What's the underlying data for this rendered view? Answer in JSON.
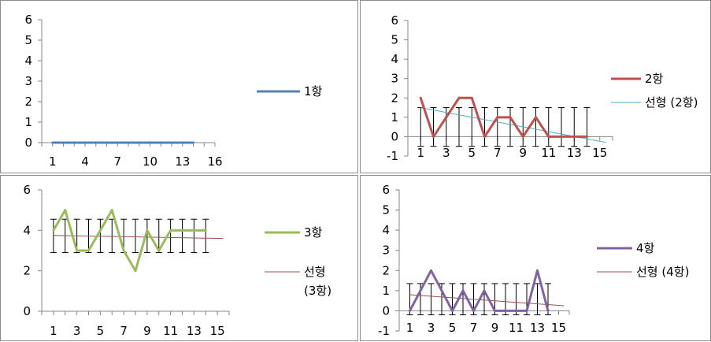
{
  "chart_data": [
    {
      "type": "line",
      "x": [
        1,
        2,
        3,
        4,
        5,
        6,
        7,
        8,
        9,
        10,
        11,
        12,
        13,
        14
      ],
      "series": [
        {
          "name": "1항",
          "color": "#4f81bd",
          "values": [
            0,
            0,
            0,
            0,
            0,
            0,
            0,
            0,
            0,
            0,
            0,
            0,
            0,
            0
          ]
        }
      ],
      "ylim": [
        0,
        6
      ],
      "yticks": [
        "0",
        "1",
        "2",
        "3",
        "4",
        "5",
        "6"
      ],
      "xlim": [
        0,
        16
      ],
      "xticks": [
        "1",
        "4",
        "7",
        "10",
        "13",
        "16"
      ],
      "grid": false,
      "legend": "right"
    },
    {
      "type": "line",
      "x": [
        1,
        2,
        3,
        4,
        5,
        6,
        7,
        8,
        9,
        10,
        11,
        12,
        13,
        14
      ],
      "series": [
        {
          "name": "2항",
          "color": "#c0504d",
          "values": [
            2,
            0,
            1,
            2,
            2,
            0,
            1,
            1,
            0,
            1,
            0,
            0,
            0,
            0
          ],
          "error_bars": {
            "low": -0.5,
            "high": 1.5
          }
        },
        {
          "name": "선형 (2항)",
          "color": "#4bacc6",
          "trendline": {
            "from": [
              1,
              1.5
            ],
            "to": [
              15.5,
              -0.3
            ]
          }
        }
      ],
      "ylim": [
        -1,
        6
      ],
      "yticks": [
        "-1",
        "0",
        "1",
        "2",
        "3",
        "4",
        "5",
        "6"
      ],
      "xlim": [
        0,
        16
      ],
      "xticks": [
        "1",
        "3",
        "5",
        "7",
        "9",
        "11",
        "13",
        "15"
      ],
      "grid": false,
      "legend": "right"
    },
    {
      "type": "line",
      "x": [
        1,
        2,
        3,
        4,
        5,
        6,
        7,
        8,
        9,
        10,
        11,
        12,
        13,
        14
      ],
      "series": [
        {
          "name": "3항",
          "color": "#9bbb59",
          "values": [
            4,
            5,
            3,
            3,
            4,
            5,
            3,
            2,
            4,
            3,
            4,
            4,
            4,
            4
          ],
          "error_bars": {
            "low": 2.9,
            "high": 4.55
          }
        },
        {
          "name": "선형 (3항)",
          "color": "#a0504b",
          "trendline": {
            "from": [
              1,
              3.75
            ],
            "to": [
              15.5,
              3.6
            ]
          }
        }
      ],
      "ylim": [
        0,
        6
      ],
      "yticks": [
        "0",
        "2",
        "4",
        "6"
      ],
      "xlim": [
        0,
        16
      ],
      "xticks": [
        "1",
        "3",
        "5",
        "7",
        "9",
        "11",
        "13",
        "15"
      ],
      "grid": false,
      "legend": "right"
    },
    {
      "type": "line",
      "x": [
        1,
        2,
        3,
        4,
        5,
        6,
        7,
        8,
        9,
        10,
        11,
        12,
        13,
        14
      ],
      "series": [
        {
          "name": "4항",
          "color": "#8064a2",
          "values": [
            0,
            1,
            2,
            1,
            0,
            1,
            0,
            1,
            0,
            0,
            0,
            0,
            2,
            0
          ],
          "error_bars": {
            "low": -0.2,
            "high": 1.35
          }
        },
        {
          "name": "선형 (4항)",
          "color": "#a0504b",
          "trendline": {
            "from": [
              1,
              0.8
            ],
            "to": [
              15.5,
              0.25
            ]
          }
        }
      ],
      "ylim": [
        -1,
        6
      ],
      "yticks": [
        "-1",
        "0",
        "1",
        "2",
        "3",
        "4",
        "5",
        "6"
      ],
      "xlim": [
        0,
        16
      ],
      "xticks": [
        "1",
        "3",
        "5",
        "7",
        "9",
        "11",
        "13",
        "15"
      ],
      "grid": false,
      "legend": "right"
    }
  ],
  "legend": {
    "p1": [
      "1항"
    ],
    "p2": [
      "2항",
      "선형 (2항)"
    ],
    "p3": [
      "3항",
      "선형",
      "(3항)"
    ],
    "p4": [
      "4항",
      "선형 (4항)"
    ]
  }
}
